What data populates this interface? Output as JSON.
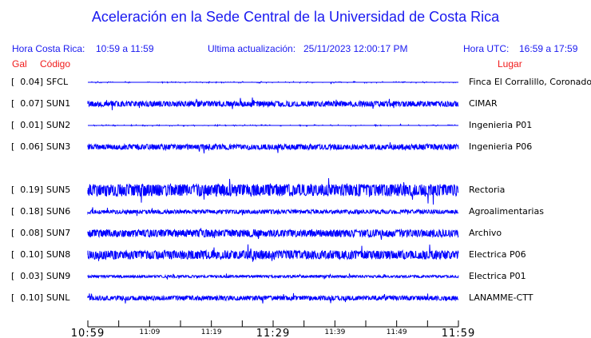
{
  "title": "Aceleración en la Sede Central de la Universidad de Costa Rica",
  "header": {
    "local_label": "Hora Costa Rica:",
    "local_range": "10:59 a 11:59",
    "update_label": "Ultima actualización:",
    "update_value": "25/11/2023 12:00:17 PM",
    "utc_label": "Hora UTC:",
    "utc_range": "16:59 a 17:59",
    "col_gal": "Gal",
    "col_code": "Código",
    "col_place": "Lugar"
  },
  "chart_data": {
    "type": "line",
    "trace_color": "#0000ff",
    "x_ticks_major": [
      "10:59",
      "11:29",
      "11:59"
    ],
    "x_ticks_minor": [
      "11:09",
      "11:19",
      "11:39",
      "11:49"
    ],
    "stations": [
      {
        "gal": "0.04",
        "code": "SFCL",
        "place": "Finca El Corralillo, Coronado"
      },
      {
        "gal": "0.07",
        "code": "SUN1",
        "place": "CIMAR"
      },
      {
        "gal": "0.01",
        "code": "SUN2",
        "place": "Ingenieria P01"
      },
      {
        "gal": "0.06",
        "code": "SUN3",
        "place": "Ingenieria P06"
      },
      null,
      {
        "gal": "0.19",
        "code": "SUN5",
        "place": "Rectoria"
      },
      {
        "gal": "0.18",
        "code": "SUN6",
        "place": "Agroalimentarias"
      },
      {
        "gal": "0.08",
        "code": "SUN7",
        "place": "Archivo"
      },
      {
        "gal": "0.10",
        "code": "SUN8",
        "place": "Electrica P06"
      },
      {
        "gal": "0.03",
        "code": "SUN9",
        "place": "Electrica P01"
      },
      {
        "gal": "0.10",
        "code": "SUNL",
        "place": "LANAMME-CTT"
      }
    ]
  }
}
